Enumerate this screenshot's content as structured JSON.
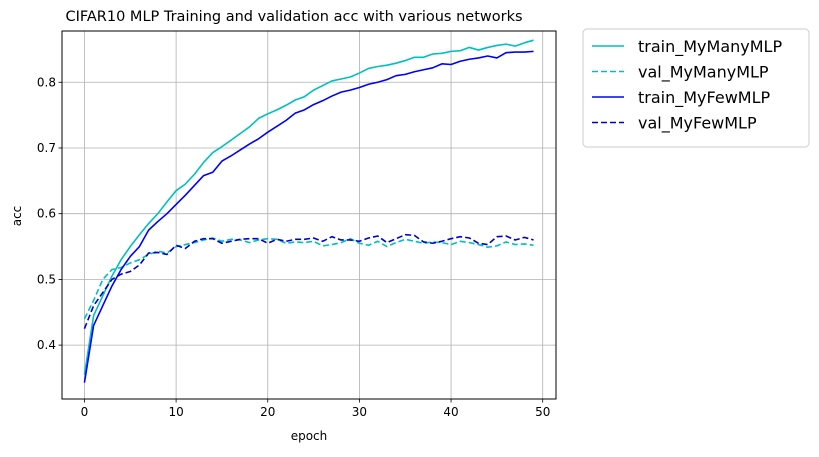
{
  "chart_data": {
    "type": "line",
    "title": "CIFAR10 MLP Training and validation acc with various networks",
    "xlabel": "epoch",
    "ylabel": "acc",
    "xlim": [
      -2.45,
      51.45
    ],
    "ylim": [
      0.318,
      0.878
    ],
    "xticks": [
      0,
      10,
      20,
      30,
      40,
      50
    ],
    "yticks": [
      0.4,
      0.5,
      0.6,
      0.7,
      0.8
    ],
    "xtick_labels": [
      "0",
      "10",
      "20",
      "30",
      "40",
      "50"
    ],
    "ytick_labels": [
      "0.4",
      "0.5",
      "0.6",
      "0.7",
      "0.8"
    ],
    "grid": true,
    "legend_position": "outside upper right",
    "x": [
      0,
      1,
      2,
      3,
      4,
      5,
      6,
      7,
      8,
      9,
      10,
      11,
      12,
      13,
      14,
      15,
      16,
      17,
      18,
      19,
      20,
      21,
      22,
      23,
      24,
      25,
      26,
      27,
      28,
      29,
      30,
      31,
      32,
      33,
      34,
      35,
      36,
      37,
      38,
      39,
      40,
      41,
      42,
      43,
      44,
      45,
      46,
      47,
      48,
      49
    ],
    "series": [
      {
        "name": "train_MyManyMLP",
        "color": "#00bfbf",
        "dash": "solid",
        "values": [
          0.355,
          0.445,
          0.475,
          0.505,
          0.53,
          0.55,
          0.568,
          0.585,
          0.6,
          0.618,
          0.635,
          0.645,
          0.66,
          0.678,
          0.693,
          0.702,
          0.712,
          0.722,
          0.732,
          0.745,
          0.752,
          0.758,
          0.765,
          0.773,
          0.778,
          0.788,
          0.795,
          0.802,
          0.805,
          0.808,
          0.814,
          0.821,
          0.824,
          0.826,
          0.829,
          0.833,
          0.838,
          0.838,
          0.843,
          0.844,
          0.847,
          0.848,
          0.853,
          0.849,
          0.853,
          0.856,
          0.858,
          0.855,
          0.86,
          0.864
        ]
      },
      {
        "name": "val_MyManyMLP",
        "color": "#00bfbf",
        "dash": "dashed",
        "values": [
          0.44,
          0.468,
          0.5,
          0.515,
          0.518,
          0.525,
          0.53,
          0.538,
          0.543,
          0.54,
          0.55,
          0.553,
          0.556,
          0.56,
          0.563,
          0.558,
          0.561,
          0.56,
          0.556,
          0.56,
          0.562,
          0.561,
          0.555,
          0.557,
          0.556,
          0.558,
          0.551,
          0.553,
          0.556,
          0.562,
          0.555,
          0.552,
          0.558,
          0.55,
          0.556,
          0.561,
          0.558,
          0.555,
          0.557,
          0.556,
          0.553,
          0.558,
          0.556,
          0.553,
          0.549,
          0.551,
          0.557,
          0.553,
          0.554,
          0.552
        ]
      },
      {
        "name": "train_MyFewMLP",
        "color": "#0000ff",
        "dash": "solid",
        "values": [
          0.343,
          0.43,
          0.46,
          0.49,
          0.515,
          0.535,
          0.55,
          0.575,
          0.588,
          0.6,
          0.614,
          0.628,
          0.643,
          0.658,
          0.663,
          0.68,
          0.688,
          0.697,
          0.706,
          0.714,
          0.724,
          0.733,
          0.742,
          0.753,
          0.758,
          0.766,
          0.772,
          0.779,
          0.785,
          0.788,
          0.792,
          0.797,
          0.8,
          0.804,
          0.81,
          0.812,
          0.816,
          0.819,
          0.822,
          0.828,
          0.827,
          0.832,
          0.835,
          0.837,
          0.84,
          0.837,
          0.845,
          0.846,
          0.846,
          0.847
        ]
      },
      {
        "name": "val_MyFewMLP",
        "color": "#0000cc",
        "dash": "dashed",
        "values": [
          0.425,
          0.46,
          0.48,
          0.5,
          0.508,
          0.512,
          0.522,
          0.54,
          0.541,
          0.538,
          0.552,
          0.547,
          0.558,
          0.562,
          0.562,
          0.555,
          0.558,
          0.561,
          0.562,
          0.562,
          0.555,
          0.561,
          0.558,
          0.561,
          0.561,
          0.563,
          0.558,
          0.565,
          0.56,
          0.56,
          0.558,
          0.563,
          0.566,
          0.556,
          0.562,
          0.568,
          0.567,
          0.557,
          0.555,
          0.558,
          0.562,
          0.565,
          0.563,
          0.555,
          0.553,
          0.565,
          0.566,
          0.56,
          0.564,
          0.56
        ]
      }
    ]
  }
}
